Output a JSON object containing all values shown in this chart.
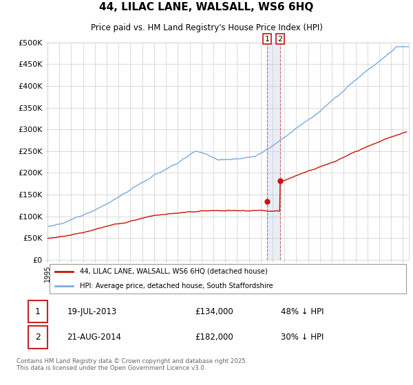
{
  "title": "44, LILAC LANE, WALSALL, WS6 6HQ",
  "subtitle": "Price paid vs. HM Land Registry's House Price Index (HPI)",
  "ylabel_ticks": [
    "£0",
    "£50K",
    "£100K",
    "£150K",
    "£200K",
    "£250K",
    "£300K",
    "£350K",
    "£400K",
    "£450K",
    "£500K"
  ],
  "ytick_values": [
    0,
    50000,
    100000,
    150000,
    200000,
    250000,
    300000,
    350000,
    400000,
    450000,
    500000
  ],
  "ylim": [
    0,
    500000
  ],
  "xlim_start": 1995,
  "xlim_end": 2025.5,
  "hpi_color": "#7aaadd",
  "price_color": "#cc1100",
  "marker1_date": 2013.54,
  "marker2_date": 2014.64,
  "transaction1": {
    "date": "19-JUL-2013",
    "price": "£134,000",
    "hpi": "48% ↓ HPI",
    "y": 134000
  },
  "transaction2": {
    "date": "21-AUG-2014",
    "price": "£182,000",
    "hpi": "30% ↓ HPI",
    "y": 182000
  },
  "legend_label1": "44, LILAC LANE, WALSALL, WS6 6HQ (detached house)",
  "legend_label2": "HPI: Average price, detached house, South Staffordshire",
  "footer": "Contains HM Land Registry data © Crown copyright and database right 2025.\nThis data is licensed under the Open Government Licence v3.0.",
  "background_color": "#ffffff"
}
